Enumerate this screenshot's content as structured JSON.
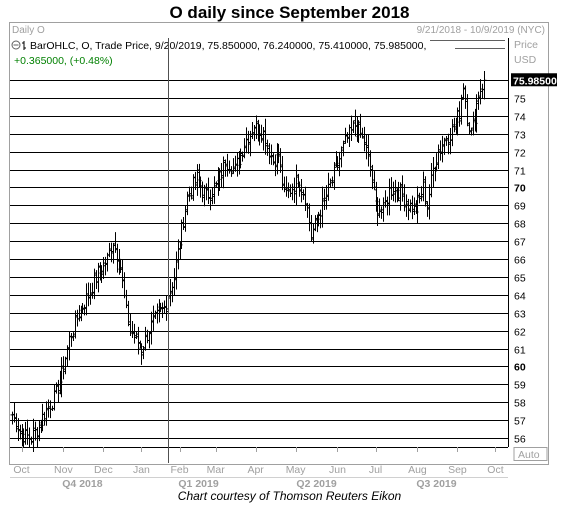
{
  "title": "O daily since September 2018",
  "credit": "Chart courtesy of Thomson Reuters Eikon",
  "header": {
    "panel_name": "Daily O",
    "date_range": "9/21/2018 - 10/9/2019 (NYC)",
    "legend_line": "BarOHLC, O, Trade Price, 9/20/2019, 75.850000, 76.240000, 75.410000, 75.985000,",
    "change_line": "+0.365000, (+0.48%)",
    "axis_field": "Price",
    "axis_currency": "USD",
    "auto_label": "Auto"
  },
  "colors": {
    "grid": "#000000",
    "bar": "#000000",
    "last_price_bg": "#000000",
    "last_price_text": "#ffffff",
    "change_text": "#008000",
    "muted_text": "#a0a0a0",
    "cursor_line": "#606060"
  },
  "chart_data": {
    "type": "ohlc",
    "ylim": [
      55.5,
      77
    ],
    "y_ticks": [
      56,
      57,
      58,
      59,
      60,
      61,
      62,
      63,
      64,
      65,
      66,
      67,
      68,
      69,
      70,
      71,
      72,
      73,
      74,
      75,
      76
    ],
    "bold_ticks": [
      60,
      70
    ],
    "last_price": 75.985,
    "last_price_label": "75.985000",
    "cursor_date_index": 82,
    "x_month_labels": [
      {
        "label": "Oct",
        "index": 5
      },
      {
        "label": "Nov",
        "index": 27
      },
      {
        "label": "Dec",
        "index": 48
      },
      {
        "label": "Jan",
        "index": 68
      },
      {
        "label": "Feb",
        "index": 88
      },
      {
        "label": "Mar",
        "index": 107
      },
      {
        "label": "Apr",
        "index": 128
      },
      {
        "label": "May",
        "index": 149
      },
      {
        "label": "Jun",
        "index": 171
      },
      {
        "label": "Jul",
        "index": 191
      },
      {
        "label": "Aug",
        "index": 213
      },
      {
        "label": "Sep",
        "index": 234
      },
      {
        "label": "Oct",
        "index": 254
      }
    ],
    "x_quarter_labels": [
      {
        "label": "Q4 2018",
        "index": 37
      },
      {
        "label": "Q1 2019",
        "index": 98
      },
      {
        "label": "Q2 2019",
        "index": 160
      },
      {
        "label": "Q3 2019",
        "index": 223
      }
    ],
    "x_count": 260,
    "anchors": [
      [
        0,
        57.3
      ],
      [
        5,
        56.2
      ],
      [
        10,
        56.0
      ],
      [
        13,
        56.5
      ],
      [
        18,
        57.6
      ],
      [
        22,
        58.2
      ],
      [
        26,
        59.5
      ],
      [
        30,
        61.5
      ],
      [
        35,
        63.0
      ],
      [
        40,
        64.0
      ],
      [
        45,
        65.2
      ],
      [
        50,
        66.0
      ],
      [
        53,
        67.0
      ],
      [
        57,
        65.5
      ],
      [
        60,
        63.0
      ],
      [
        62,
        62.0
      ],
      [
        65,
        61.5
      ],
      [
        68,
        61.0
      ],
      [
        73,
        62.3
      ],
      [
        80,
        63.3
      ],
      [
        85,
        65.0
      ],
      [
        88,
        67.0
      ],
      [
        92,
        69.5
      ],
      [
        97,
        70.5
      ],
      [
        102,
        69.5
      ],
      [
        107,
        70.0
      ],
      [
        112,
        71.5
      ],
      [
        117,
        71.0
      ],
      [
        122,
        72.5
      ],
      [
        127,
        73.5
      ],
      [
        132,
        73.0
      ],
      [
        137,
        71.5
      ],
      [
        140,
        71.8
      ],
      [
        143,
        69.5
      ],
      [
        147,
        70.0
      ],
      [
        150,
        70.5
      ],
      [
        154,
        69.5
      ],
      [
        157,
        67.3
      ],
      [
        161,
        68.5
      ],
      [
        165,
        69.5
      ],
      [
        170,
        71.0
      ],
      [
        175,
        72.5
      ],
      [
        180,
        73.5
      ],
      [
        185,
        72.5
      ],
      [
        188,
        71.0
      ],
      [
        191,
        69.0
      ],
      [
        195,
        68.7
      ],
      [
        198,
        69.8
      ],
      [
        202,
        70.0
      ],
      [
        205,
        69.5
      ],
      [
        208,
        69.0
      ],
      [
        212,
        68.8
      ],
      [
        216,
        70.0
      ],
      [
        218,
        69.0
      ],
      [
        221,
        71.0
      ],
      [
        224,
        72.0
      ],
      [
        228,
        72.8
      ],
      [
        232,
        73.3
      ],
      [
        235,
        74.2
      ],
      [
        237,
        75.8
      ],
      [
        239,
        74.0
      ],
      [
        241,
        73.0
      ],
      [
        243,
        74.0
      ],
      [
        245,
        75.3
      ],
      [
        248,
        75.9
      ]
    ]
  }
}
